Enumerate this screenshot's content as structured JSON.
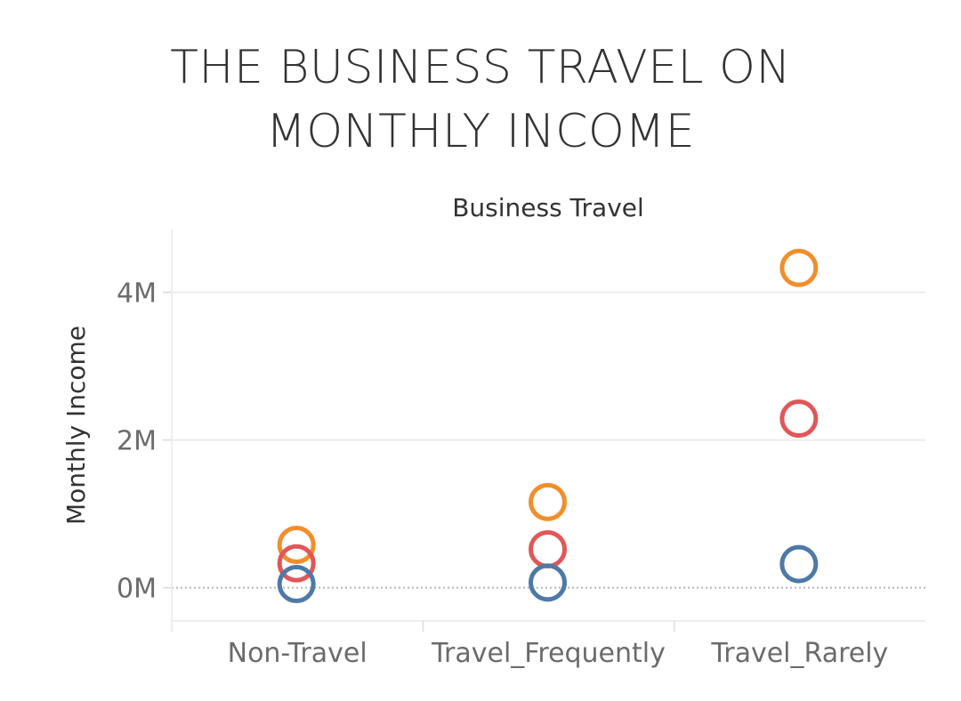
{
  "chart_data": {
    "type": "scatter",
    "title": "THE BUSINESS TRAVEL ON MONTHLY INCOME",
    "column_header": "Business Travel",
    "ylabel": "Monthly Income",
    "categories": [
      "Non-Travel",
      "Travel_Frequently",
      "Travel_Rarely"
    ],
    "y_ticks": [
      {
        "value": 0,
        "label": "0M"
      },
      {
        "value": 2000000,
        "label": "2M"
      },
      {
        "value": 4000000,
        "label": "4M"
      }
    ],
    "ylim": [
      -450000,
      4850000
    ],
    "grid": true,
    "marker": "open-circle",
    "series": [
      {
        "color": "#F28E2B",
        "values": [
          580000,
          1160000,
          4330000
        ]
      },
      {
        "color": "#E15759",
        "values": [
          330000,
          520000,
          2290000
        ]
      },
      {
        "color": "#4E79A7",
        "values": [
          50000,
          70000,
          320000
        ]
      }
    ]
  }
}
